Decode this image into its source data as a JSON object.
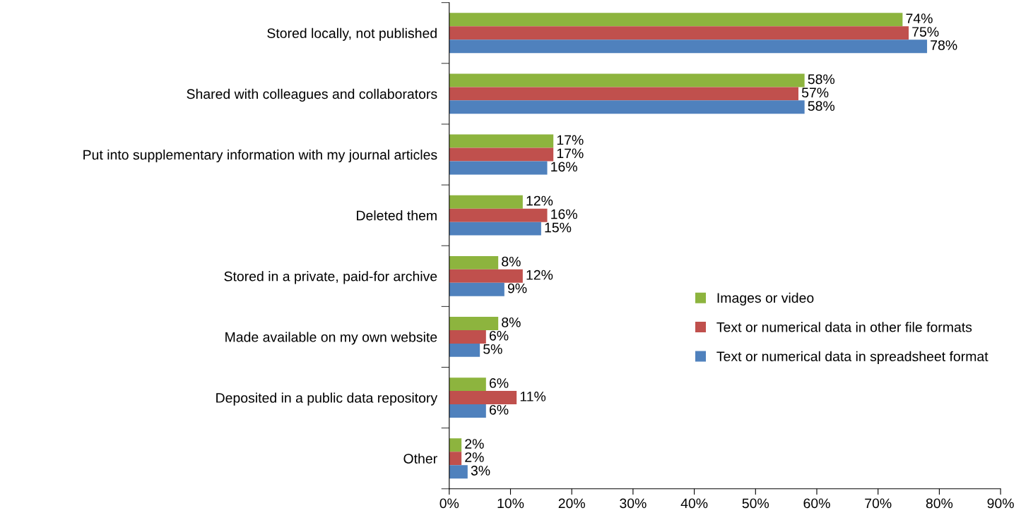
{
  "chart_data": {
    "type": "bar",
    "orientation": "horizontal",
    "categories": [
      "Stored locally, not published",
      "Shared with colleagues and collaborators",
      "Put into supplementary information with my journal articles",
      "Deleted them",
      "Stored in a private, paid-for archive",
      "Made available on my own website",
      "Deposited in a public data repository",
      "Other"
    ],
    "series": [
      {
        "name": "Images or video",
        "color": "#8db43e",
        "values": [
          74,
          58,
          17,
          12,
          8,
          8,
          6,
          2
        ],
        "value_labels": [
          "74%",
          "58%",
          "17%",
          "12%",
          "8%",
          "8%",
          "6%",
          "2%"
        ]
      },
      {
        "name": "Text or numerical data in other file formats",
        "color": "#c0504d",
        "values": [
          75,
          57,
          17,
          16,
          12,
          6,
          11,
          2
        ],
        "value_labels": [
          "75%",
          "57%",
          "17%",
          "16%",
          "12%",
          "6%",
          "11%",
          "2%"
        ]
      },
      {
        "name": "Text or numerical data in spreadsheet format",
        "color": "#4f81bd",
        "values": [
          78,
          58,
          16,
          15,
          9,
          5,
          6,
          3
        ],
        "value_labels": [
          "78%",
          "58%",
          "16%",
          "15%",
          "9%",
          "5%",
          "6%",
          "3%"
        ]
      }
    ],
    "xlim": [
      0,
      90
    ],
    "xticks": [
      {
        "value": 0,
        "label": "0%"
      },
      {
        "value": 10,
        "label": "10%"
      },
      {
        "value": 20,
        "label": "20%"
      },
      {
        "value": 30,
        "label": "30%"
      },
      {
        "value": 40,
        "label": "40%"
      },
      {
        "value": 50,
        "label": "50%"
      },
      {
        "value": 60,
        "label": "60%"
      },
      {
        "value": 70,
        "label": "70%"
      },
      {
        "value": 80,
        "label": "80%"
      },
      {
        "value": 90,
        "label": "90%"
      }
    ],
    "grid": false,
    "legend": "right"
  }
}
